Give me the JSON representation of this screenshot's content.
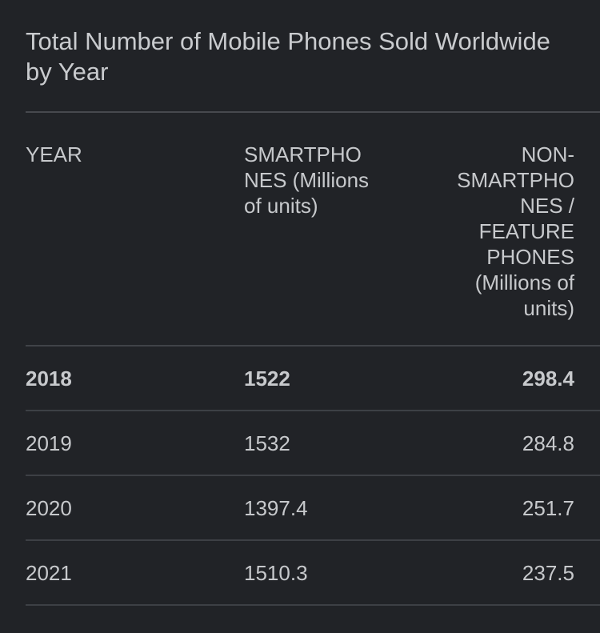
{
  "page": {
    "background_color": "#212327",
    "text_color": "#c9cbce",
    "divider_color": "#47494e"
  },
  "title": "Total Number of Mobile Phones Sold Worldwide\nby Year",
  "table": {
    "columns": [
      {
        "key": "year",
        "label": "YEAR",
        "full_label": "YEAR",
        "align": "left"
      },
      {
        "key": "smartphones",
        "label": "SMARTPHO\nNES (Millions\nof units)",
        "full_label": "SMARTPHONES (Millions of units)",
        "align": "left"
      },
      {
        "key": "non_smartphones",
        "label": "NON-\nSMARTPHO\nNES /\nFEATURE\nPHONES\n(Millions of\nunits)",
        "full_label": "NON-SMARTPHONES / FEATURE PHONES (Millions of units)",
        "align": "right"
      }
    ],
    "rows": [
      {
        "year": "2018",
        "smartphones": "1522",
        "non_smartphones": "298.4",
        "bold": true
      },
      {
        "year": "2019",
        "smartphones": "1532",
        "non_smartphones": "284.8",
        "bold": false
      },
      {
        "year": "2020",
        "smartphones": "1397.4",
        "non_smartphones": "251.7",
        "bold": false
      },
      {
        "year": "2021",
        "smartphones": "1510.3",
        "non_smartphones": "237.5",
        "bold": false
      }
    ]
  },
  "chart_data": {
    "type": "table",
    "title": "Total Number of Mobile Phones Sold Worldwide by Year",
    "categories": [
      "2018",
      "2019",
      "2020",
      "2021"
    ],
    "series": [
      {
        "name": "SMARTPHONES (Millions of units)",
        "values": [
          1522,
          1532,
          1397.4,
          1510.3
        ]
      },
      {
        "name": "NON-SMARTPHONES / FEATURE PHONES (Millions of units)",
        "values": [
          298.4,
          284.8,
          251.7,
          237.5
        ]
      }
    ]
  }
}
